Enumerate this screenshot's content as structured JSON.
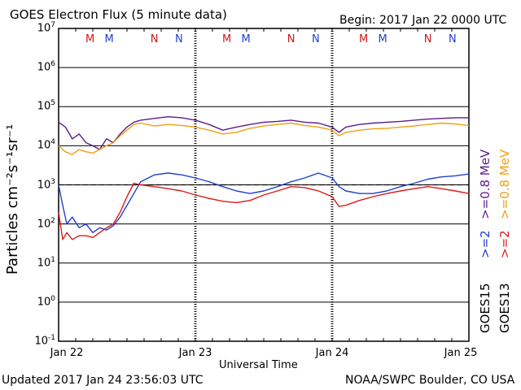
{
  "header": {
    "title": "GOES Electron Flux (5 minute data)",
    "begin": "Begin: 2017 Jan 22 0000 UTC"
  },
  "footer": {
    "updated": "Updated 2017 Jan 24 23:56:03 UTC",
    "credit": "NOAA/SWPC Boulder, CO USA"
  },
  "colors": {
    "goes15_08": "#5a1d8c",
    "goes13_08": "#f0a010",
    "goes15_2": "#1f3fd0",
    "goes13_2": "#e01818",
    "marker_M": "#d01818",
    "marker_N": "#d01818",
    "marker_blue": "#1f3fd0"
  },
  "markers": [
    {
      "label": "M",
      "color": "#d01818",
      "x_day": 0.23
    },
    {
      "label": "M",
      "color": "#1f3fd0",
      "x_day": 0.37
    },
    {
      "label": "N",
      "color": "#d01818",
      "x_day": 0.7
    },
    {
      "label": "N",
      "color": "#1f3fd0",
      "x_day": 0.88
    },
    {
      "label": "M",
      "color": "#d01818",
      "x_day": 1.23
    },
    {
      "label": "M",
      "color": "#1f3fd0",
      "x_day": 1.37
    },
    {
      "label": "N",
      "color": "#d01818",
      "x_day": 1.7
    },
    {
      "label": "N",
      "color": "#1f3fd0",
      "x_day": 1.88
    },
    {
      "label": "M",
      "color": "#d01818",
      "x_day": 2.23
    },
    {
      "label": "M",
      "color": "#1f3fd0",
      "x_day": 2.37
    },
    {
      "label": "N",
      "color": "#d01818",
      "x_day": 2.7
    },
    {
      "label": "N",
      "color": "#1f3fd0",
      "x_day": 2.88
    }
  ],
  "chart_data": {
    "type": "line",
    "title": "GOES Electron Flux (5 minute data)",
    "xlabel": "Universal Time",
    "ylabel": "Particles cm⁻²s⁻¹sr⁻¹",
    "y_scale": "log",
    "ylim": [
      0.1,
      10000000
    ],
    "xlim": [
      0,
      3
    ],
    "x_ticks": [
      "Jan 22",
      "Jan 23",
      "Jan 24",
      "Jan 25"
    ],
    "y_ticks": [
      {
        "base": "10",
        "exp": "7"
      },
      {
        "base": "10",
        "exp": "6"
      },
      {
        "base": "10",
        "exp": "5"
      },
      {
        "base": "10",
        "exp": "4"
      },
      {
        "base": "10",
        "exp": "3"
      },
      {
        "base": "10",
        "exp": "2"
      },
      {
        "base": "10",
        "exp": "1"
      },
      {
        "base": "10",
        "exp": "0"
      },
      {
        "base": "10",
        "exp": "-1"
      }
    ],
    "threshold": 1000,
    "legend": {
      "goes15": "GOES15",
      "goes13": "GOES13",
      "g15_2": ">=2",
      "g13_2": ">=2",
      "g15_08": ">=0.8 MeV",
      "g13_08": ">=0.8 MeV"
    },
    "series": [
      {
        "name": "GOES15 >=0.8 MeV",
        "color": "#5a1d8c",
        "x": [
          0,
          0.05,
          0.1,
          0.15,
          0.2,
          0.25,
          0.3,
          0.35,
          0.4,
          0.45,
          0.5,
          0.55,
          0.6,
          0.7,
          0.8,
          0.9,
          1.0,
          1.1,
          1.2,
          1.3,
          1.4,
          1.5,
          1.6,
          1.7,
          1.8,
          1.9,
          2.0,
          2.05,
          2.1,
          2.2,
          2.3,
          2.4,
          2.5,
          2.6,
          2.7,
          2.8,
          2.9,
          3.0
        ],
        "y": [
          40000,
          30000,
          15000,
          20000,
          12000,
          10000,
          8000,
          15000,
          12000,
          20000,
          30000,
          40000,
          45000,
          50000,
          55000,
          52000,
          45000,
          35000,
          25000,
          30000,
          35000,
          40000,
          42000,
          45000,
          40000,
          38000,
          30000,
          22000,
          30000,
          35000,
          38000,
          40000,
          42000,
          45000,
          48000,
          50000,
          52000,
          52000
        ]
      },
      {
        "name": "GOES13 >=0.8 MeV",
        "color": "#f0a010",
        "x": [
          0,
          0.05,
          0.1,
          0.15,
          0.2,
          0.25,
          0.3,
          0.35,
          0.4,
          0.45,
          0.5,
          0.55,
          0.6,
          0.7,
          0.8,
          0.9,
          1.0,
          1.1,
          1.2,
          1.3,
          1.4,
          1.5,
          1.6,
          1.7,
          1.8,
          1.9,
          2.0,
          2.05,
          2.1,
          2.2,
          2.3,
          2.4,
          2.5,
          2.6,
          2.7,
          2.8,
          2.9,
          3.0
        ],
        "y": [
          10000,
          7000,
          6000,
          8000,
          7000,
          6500,
          8000,
          10000,
          12000,
          18000,
          25000,
          35000,
          38000,
          32000,
          35000,
          33000,
          30000,
          25000,
          20000,
          22000,
          28000,
          32000,
          35000,
          38000,
          33000,
          30000,
          25000,
          18000,
          22000,
          25000,
          27000,
          28000,
          30000,
          32000,
          35000,
          38000,
          36000,
          33000
        ]
      },
      {
        "name": "GOES15 >=2",
        "color": "#1f3fd0",
        "x": [
          0,
          0.03,
          0.06,
          0.1,
          0.15,
          0.2,
          0.25,
          0.3,
          0.35,
          0.4,
          0.45,
          0.5,
          0.55,
          0.6,
          0.7,
          0.8,
          0.9,
          1.0,
          1.1,
          1.2,
          1.3,
          1.4,
          1.5,
          1.6,
          1.7,
          1.8,
          1.9,
          2.0,
          2.05,
          2.1,
          2.2,
          2.3,
          2.4,
          2.5,
          2.6,
          2.7,
          2.8,
          2.9,
          3.0
        ],
        "y": [
          1000,
          300,
          100,
          150,
          80,
          100,
          60,
          80,
          70,
          90,
          150,
          300,
          600,
          1200,
          1800,
          2000,
          1800,
          1500,
          1200,
          900,
          700,
          600,
          700,
          900,
          1200,
          1500,
          2000,
          1500,
          900,
          700,
          600,
          600,
          700,
          900,
          1100,
          1400,
          1600,
          1700,
          1900
        ]
      },
      {
        "name": "GOES13 >=2",
        "color": "#e01818",
        "x": [
          0,
          0.03,
          0.06,
          0.1,
          0.15,
          0.2,
          0.25,
          0.3,
          0.35,
          0.4,
          0.45,
          0.5,
          0.55,
          0.6,
          0.7,
          0.8,
          0.9,
          1.0,
          1.1,
          1.2,
          1.3,
          1.4,
          1.5,
          1.6,
          1.7,
          1.8,
          1.9,
          2.0,
          2.05,
          2.1,
          2.2,
          2.3,
          2.4,
          2.5,
          2.6,
          2.7,
          2.8,
          2.9,
          3.0
        ],
        "y": [
          200,
          40,
          60,
          40,
          50,
          50,
          45,
          60,
          80,
          100,
          200,
          500,
          1100,
          1000,
          900,
          800,
          700,
          550,
          450,
          380,
          350,
          400,
          550,
          700,
          900,
          850,
          700,
          500,
          280,
          300,
          400,
          500,
          600,
          700,
          800,
          900,
          800,
          700,
          600
        ]
      }
    ]
  }
}
